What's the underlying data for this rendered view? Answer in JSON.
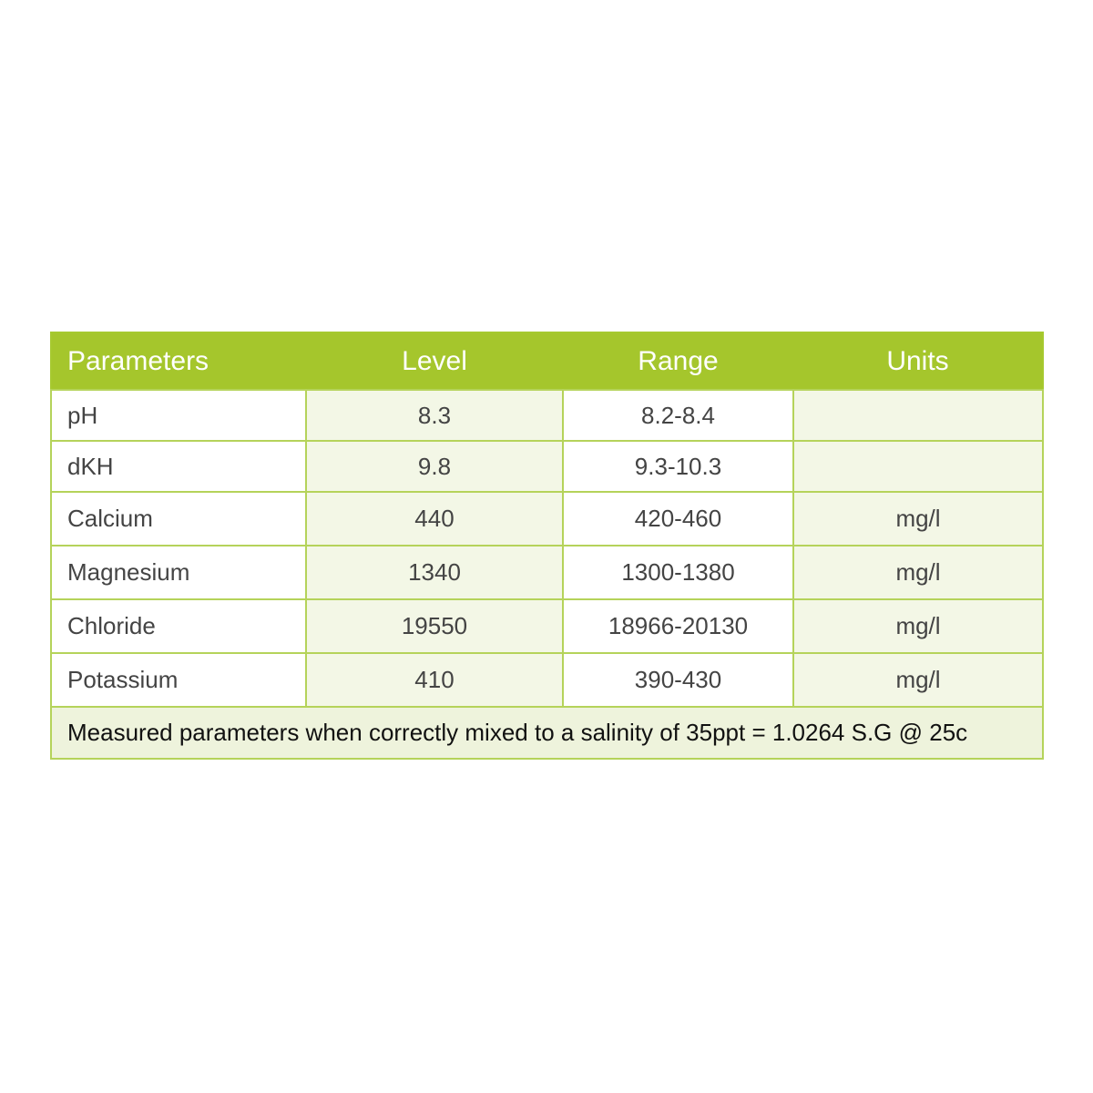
{
  "table": {
    "headers": [
      "Parameters",
      "Level",
      "Range",
      "Units"
    ],
    "rows": [
      [
        "pH",
        "8.3",
        "8.2-8.4",
        ""
      ],
      [
        "dKH",
        "9.8",
        "9.3-10.3",
        ""
      ],
      [
        "Calcium",
        "440",
        "420-460",
        "mg/l"
      ],
      [
        "Magnesium",
        "1340",
        "1300-1380",
        "mg/l"
      ],
      [
        "Chloride",
        "19550",
        "18966-20130",
        "mg/l"
      ],
      [
        "Potassium",
        "410",
        "390-430",
        "mg/l"
      ]
    ],
    "footer": "Measured parameters when correctly mixed to a salinity of 35ppt = 1.0264 S.G @ 25c"
  },
  "colors": {
    "header": "#a5c62c",
    "border": "#b5d35a",
    "cell_tint": "#f3f7e6",
    "footer_bg": "#eef3dc"
  }
}
